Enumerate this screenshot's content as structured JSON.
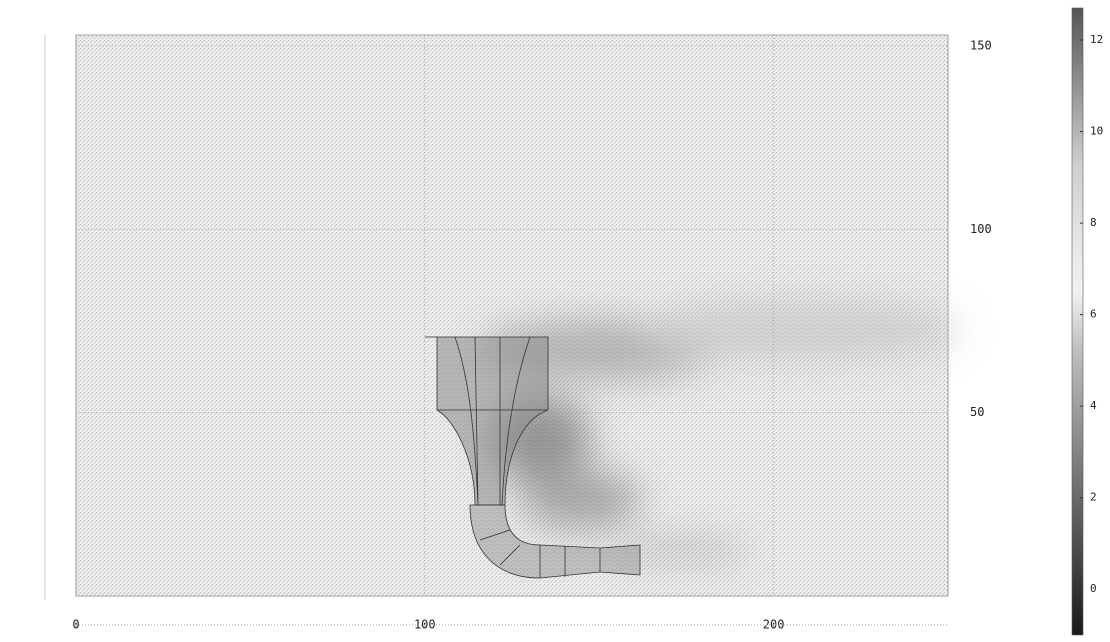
{
  "chart_data": {
    "type": "field",
    "xlim": [
      0,
      250
    ],
    "xticks": [
      0,
      100,
      200
    ],
    "ylim": [
      0,
      153
    ],
    "yticks": [
      50,
      100,
      150
    ],
    "grid": true,
    "colorbar": {
      "lim": [
        -1,
        12.7
      ],
      "ticks": [
        0,
        2,
        4,
        6,
        8,
        10,
        12
      ]
    }
  }
}
